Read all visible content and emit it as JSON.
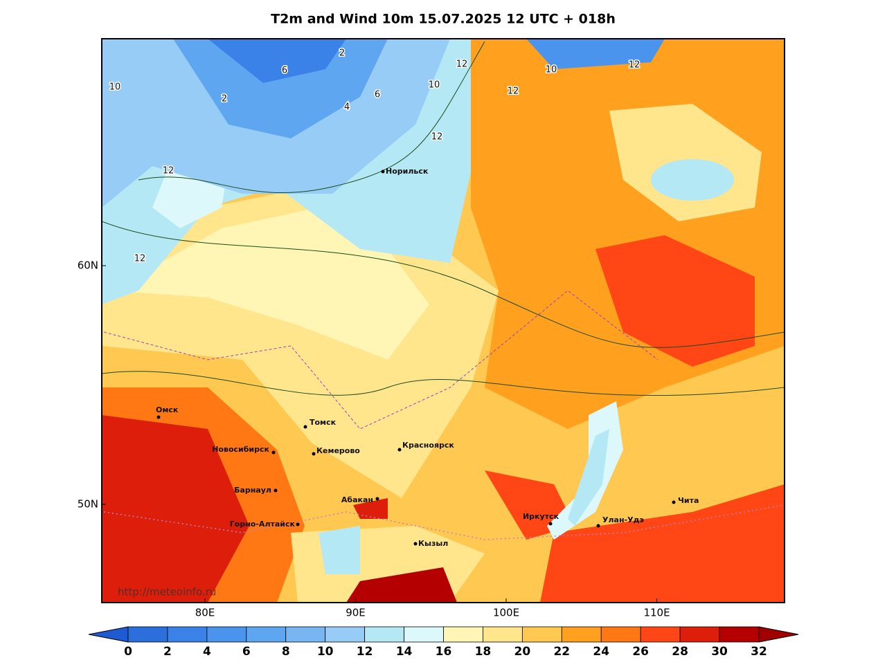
{
  "title": "T2m and Wind 10m 15.07.2025 12 UTC + 018h",
  "watermark": "http://meteoinfo.ru",
  "map": {
    "lat_ticks": [
      {
        "value": 60,
        "label": "60N"
      },
      {
        "value": 50,
        "label": "50N"
      }
    ],
    "lon_ticks": [
      {
        "value": 80,
        "label": "80E"
      },
      {
        "value": 90,
        "label": "90E"
      },
      {
        "value": 100,
        "label": "100E"
      },
      {
        "value": 110,
        "label": "110E"
      }
    ],
    "cities": [
      "Норильск",
      "Омск",
      "Томск",
      "Новосибирск",
      "Кемерово",
      "Красноярск",
      "Барнаул",
      "Абакан",
      "Горно-Алтайск",
      "Кызыл",
      "Иркутск",
      "Улан-Удэ",
      "Чита"
    ],
    "contour_labels": [
      10,
      2,
      6,
      2,
      4,
      6,
      10,
      12,
      12,
      12,
      12,
      10,
      12,
      12
    ]
  },
  "colorbar": {
    "ticks": [
      0,
      2,
      4,
      6,
      8,
      10,
      12,
      14,
      16,
      18,
      20,
      22,
      24,
      26,
      28,
      30,
      32
    ],
    "colors": [
      "#2a6fdc",
      "#3a82e8",
      "#4a94ee",
      "#5ea6f0",
      "#78b6f2",
      "#96ccf5",
      "#b4e8f5",
      "#dcf8fa",
      "#fff5b4",
      "#ffe68c",
      "#ffc850",
      "#ffa01e",
      "#ff7814",
      "#ff4614",
      "#dc1e0a",
      "#b40000"
    ],
    "under_color": "#1e5ad2",
    "over_color": "#a00000"
  }
}
